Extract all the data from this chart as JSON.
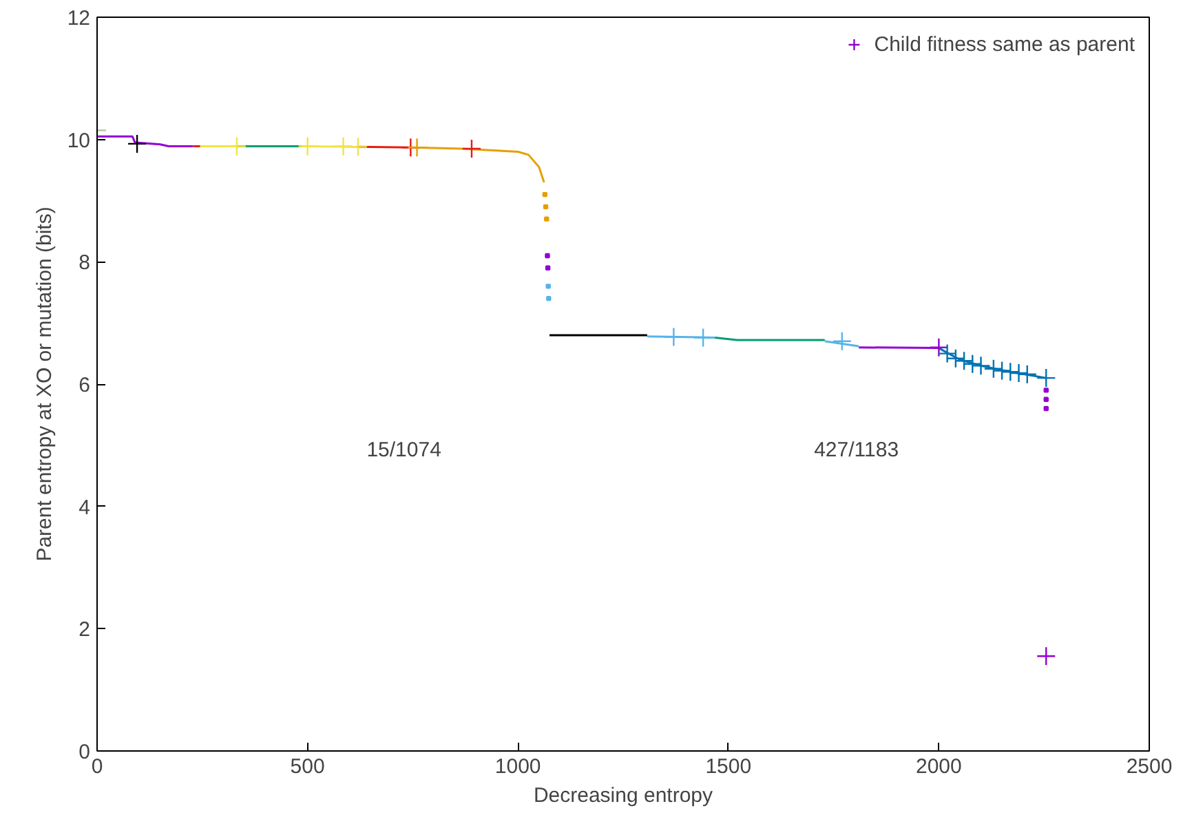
{
  "chart_data": {
    "type": "line",
    "xlabel": "Decreasing entropy",
    "ylabel": "Parent entropy at XO or mutation (bits)",
    "xlim": [
      0,
      2500
    ],
    "ylim": [
      0,
      12
    ],
    "xticks": [
      0,
      500,
      1000,
      1500,
      2000,
      2500
    ],
    "yticks": [
      0,
      2,
      4,
      6,
      8,
      10,
      12
    ],
    "grid": false,
    "legend": "top right",
    "line_style": "solid",
    "marker": "none",
    "annotations": [
      "15/1074",
      "427/1183"
    ],
    "series": [
      {
        "color": "#9400d3",
        "x": [
          0,
          84,
          90,
          150,
          170,
          228
        ],
        "values": [
          10.05,
          10.05,
          9.95,
          9.92,
          9.89,
          9.89
        ]
      },
      {
        "color": "#e51e10",
        "x": [
          228,
          245
        ],
        "values": [
          9.89,
          9.89
        ]
      },
      {
        "color": "#f0e442",
        "x": [
          245,
          332
        ],
        "values": [
          9.89,
          9.89
        ]
      },
      {
        "color": "#009e73",
        "x": [
          332,
          486
        ],
        "values": [
          9.89,
          9.89
        ]
      },
      {
        "color": "#f0e442",
        "x": [
          486,
          617
        ],
        "values": [
          9.89,
          9.88
        ]
      },
      {
        "color": "#e51e10",
        "x": [
          617,
          750
        ],
        "values": [
          9.88,
          9.87
        ]
      },
      {
        "color": "#e69f00",
        "x": [
          750,
          865,
          950,
          1000,
          1025,
          1050,
          1062
        ],
        "values": [
          9.87,
          9.85,
          9.82,
          9.8,
          9.75,
          9.55,
          9.3
        ]
      },
      {
        "type": "scatter",
        "marker": "square",
        "color": "#e69f00",
        "x": [
          1064,
          1066,
          1068
        ],
        "values": [
          9.1,
          8.9,
          8.7
        ]
      },
      {
        "type": "scatter",
        "marker": "square",
        "color": "#9400d3",
        "x": [
          1070,
          1071
        ],
        "values": [
          8.1,
          7.9
        ]
      },
      {
        "type": "scatter",
        "marker": "square",
        "color": "#56b4e9",
        "x": [
          1072,
          1073
        ],
        "values": [
          7.6,
          7.4
        ]
      },
      {
        "color": "#000000",
        "x": [
          1075,
          1307
        ],
        "values": [
          6.8,
          6.8
        ]
      },
      {
        "color": "#56b4e9",
        "x": [
          1307,
          1468
        ],
        "values": [
          6.78,
          6.76
        ]
      },
      {
        "color": "#009e73",
        "x": [
          1468,
          1521,
          1729
        ],
        "values": [
          6.76,
          6.72,
          6.72
        ]
      },
      {
        "color": "#56b4e9",
        "x": [
          1729,
          1810
        ],
        "values": [
          6.7,
          6.62
        ]
      },
      {
        "color": "#9400d3",
        "x": [
          1810,
          2000
        ],
        "values": [
          6.6,
          6.59
        ]
      },
      {
        "color": "#0072b2",
        "x": [
          2000,
          2010,
          2050,
          2100,
          2170,
          2255
        ],
        "values": [
          6.59,
          6.55,
          6.4,
          6.3,
          6.2,
          6.1
        ]
      },
      {
        "type": "scatter",
        "marker": "square",
        "color": "#9400d3",
        "x": [
          2255,
          2255,
          2255
        ],
        "values": [
          5.9,
          5.75,
          5.6
        ]
      },
      {
        "type": "scatter",
        "marker": "cross",
        "name": "Child fitness same as parent",
        "color": "#9400d3",
        "x": [
          0,
          95,
          332,
          500,
          585,
          620,
          745,
          760,
          890,
          1370,
          1440,
          1770,
          2000,
          2020,
          2040,
          2060,
          2080,
          2100,
          2130,
          2150,
          2170,
          2190,
          2210,
          2255,
          2255
        ],
        "values": [
          10.15,
          9.93,
          9.89,
          9.89,
          9.89,
          9.88,
          9.87,
          9.87,
          9.85,
          6.77,
          6.76,
          6.7,
          6.6,
          6.5,
          6.42,
          6.38,
          6.33,
          6.3,
          6.25,
          6.22,
          6.2,
          6.18,
          6.16,
          6.1,
          1.55
        ],
        "colors": [
          "#b0c0a0",
          "#000000",
          "#f0e442",
          "#f0e442",
          "#f0e442",
          "#f0e442",
          "#e51e10",
          "#e69f00",
          "#e51e10",
          "#56b4e9",
          "#56b4e9",
          "#56b4e9",
          "#9400d3",
          "#0072b2",
          "#0072b2",
          "#0072b2",
          "#0072b2",
          "#0072b2",
          "#0072b2",
          "#0072b2",
          "#0072b2",
          "#0072b2",
          "#0072b2",
          "#0072b2",
          "#9400d3"
        ]
      }
    ]
  }
}
